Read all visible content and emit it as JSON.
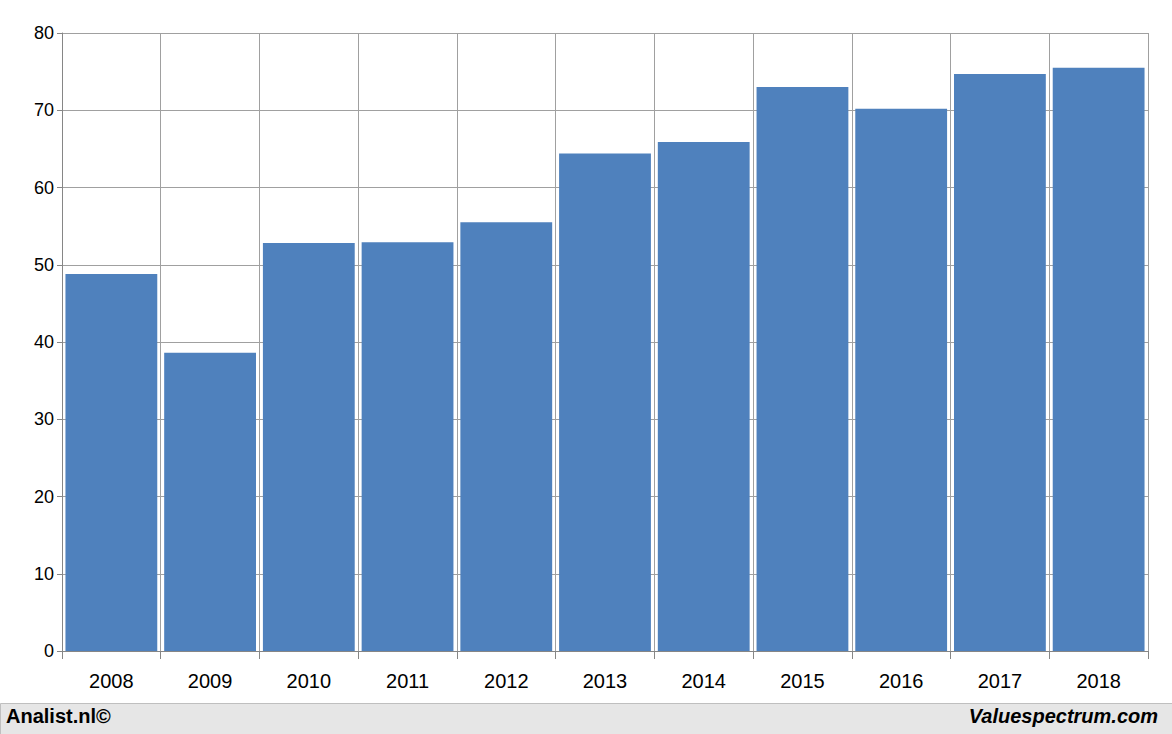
{
  "chart_data": {
    "type": "bar",
    "categories": [
      "2008",
      "2009",
      "2010",
      "2011",
      "2012",
      "2013",
      "2014",
      "2015",
      "2016",
      "2017",
      "2018"
    ],
    "values": [
      48.8,
      38.6,
      52.8,
      52.9,
      55.5,
      64.4,
      65.9,
      73.0,
      70.2,
      74.7,
      75.5
    ],
    "color": "#4f81bd",
    "ylim": [
      0,
      80
    ],
    "yticks": [
      0,
      10,
      20,
      30,
      40,
      50,
      60,
      70,
      80
    ],
    "grid": true,
    "annotations": [
      "Analist.nl©",
      "Valuespectrum.com"
    ]
  }
}
